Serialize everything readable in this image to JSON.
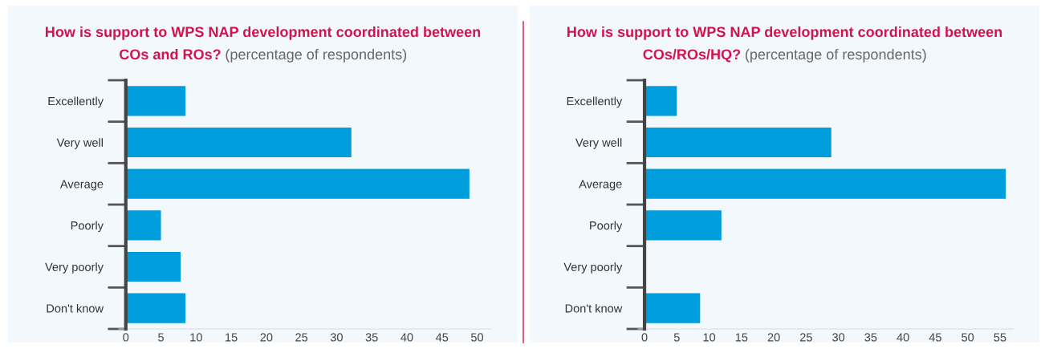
{
  "chart_data": [
    {
      "type": "bar",
      "orientation": "horizontal",
      "title": "How is support to WPS NAP development coordinated between\nCOs and ROs?",
      "subtitle": "(percentage of respondents)",
      "categories": [
        "Excellently",
        "Very well",
        "Average",
        "Poorly",
        "Very poorly",
        "Don't know"
      ],
      "values": [
        8.5,
        32.1,
        48.9,
        5.0,
        7.8,
        8.5
      ],
      "color": "#009ddc",
      "xlim": [
        -1,
        52
      ],
      "xticks": [
        0,
        5,
        10,
        15,
        20,
        25,
        30,
        35,
        40,
        45,
        50
      ],
      "grid": false
    },
    {
      "type": "bar",
      "orientation": "horizontal",
      "title": "How is support to WPS NAP development coordinated between\nCOs/ROs/HQ?",
      "subtitle": "(percentage of respondents)",
      "categories": [
        "Excellently",
        "Very well",
        "Average",
        "Poorly",
        "Very poorly",
        "Don't know"
      ],
      "values": [
        5.0,
        28.9,
        55.9,
        11.9,
        0,
        8.6
      ],
      "color": "#009ddc",
      "xlim": [
        -1,
        57
      ],
      "xticks": [
        0,
        5,
        10,
        15,
        20,
        25,
        30,
        35,
        40,
        45,
        50,
        55
      ],
      "grid": false
    }
  ]
}
